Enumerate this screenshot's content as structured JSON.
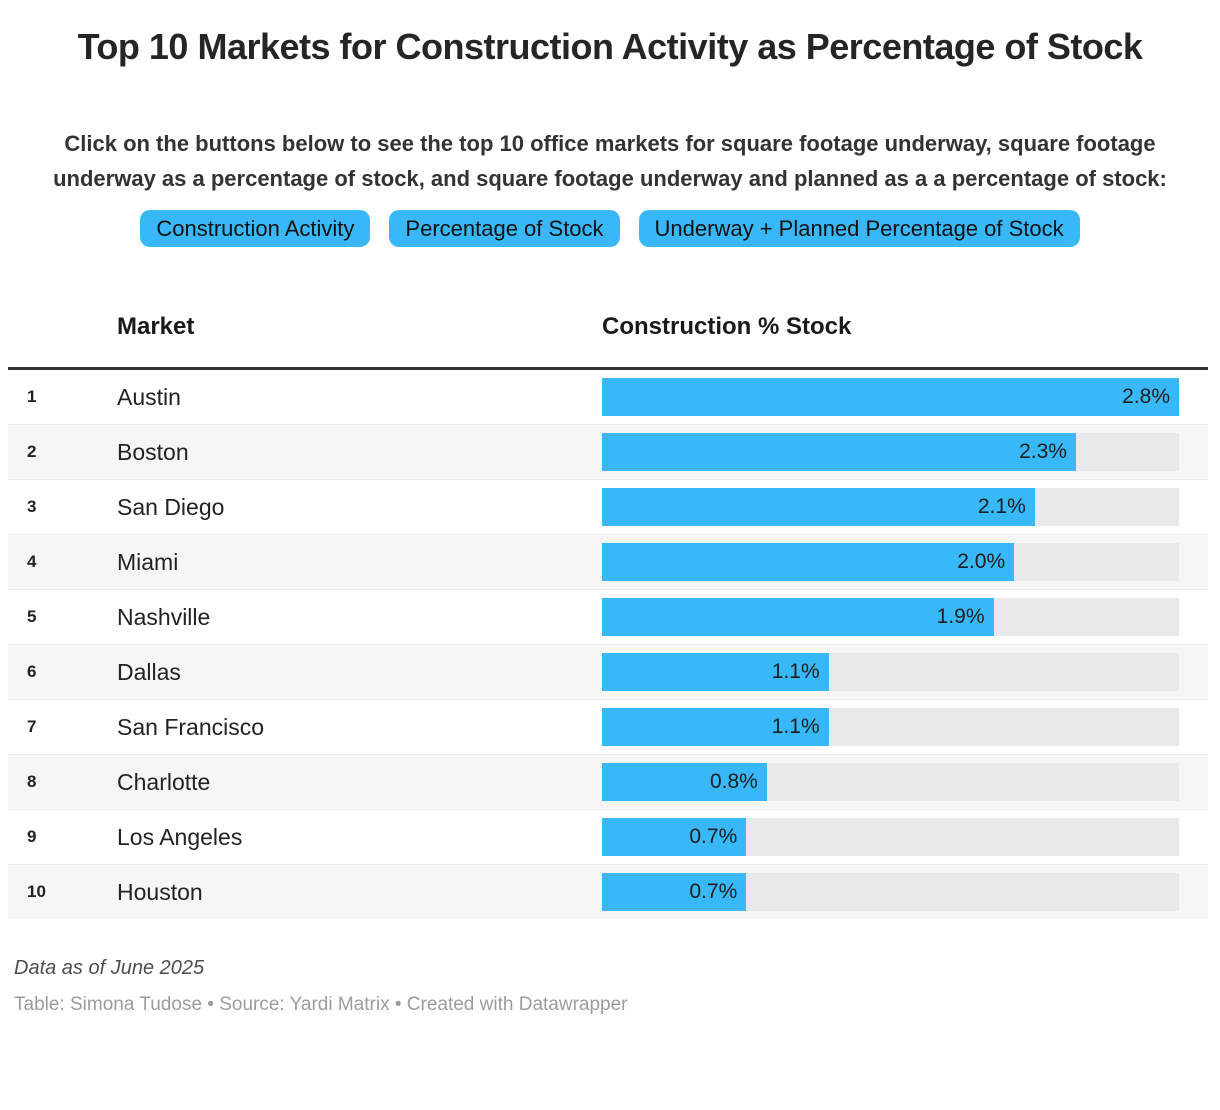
{
  "header": {
    "title": "Top 10 Markets for Construction Activity as Percentage of Stock",
    "description": "Click on the buttons below to see the top 10 office markets for square footage underway, square footage underway as a percentage of stock, and square footage underway and planned as a a percentage of stock:"
  },
  "buttons": [
    {
      "label": "Construction Activity"
    },
    {
      "label": "Percentage of Stock"
    },
    {
      "label": "Underway + Planned Percentage of Stock"
    }
  ],
  "colors": {
    "accent_blue": "#38b8f8",
    "bar_track": "#e9e9e9",
    "row_stripe": "#f6f6f6",
    "header_border": "#333333"
  },
  "table": {
    "headers": {
      "rank": "",
      "market": "Market",
      "value": "Construction % Stock"
    }
  },
  "chart_data": {
    "type": "bar",
    "orientation": "horizontal",
    "title": "Top 10 Markets for Construction Activity as Percentage of Stock",
    "xlabel": "Construction % Stock",
    "ylabel": "Market",
    "xlim": [
      0,
      2.8
    ],
    "grid": false,
    "legend": false,
    "ranks": [
      1,
      2,
      3,
      4,
      5,
      6,
      7,
      8,
      9,
      10
    ],
    "categories": [
      "Austin",
      "Boston",
      "San Diego",
      "Miami",
      "Nashville",
      "Dallas",
      "San Francisco",
      "Charlotte",
      "Los Angeles",
      "Houston"
    ],
    "values": [
      2.8,
      2.3,
      2.1,
      2.0,
      1.9,
      1.1,
      1.1,
      0.8,
      0.7,
      0.7
    ],
    "value_labels": [
      "2.8%",
      "2.3%",
      "2.1%",
      "2.0%",
      "1.9%",
      "1.1%",
      "1.1%",
      "0.8%",
      "0.7%",
      "0.7%"
    ]
  },
  "footer": {
    "note": "Data as of June 2025",
    "byline": "Table: Simona Tudose • Source: Yardi Matrix • Created with Datawrapper"
  }
}
